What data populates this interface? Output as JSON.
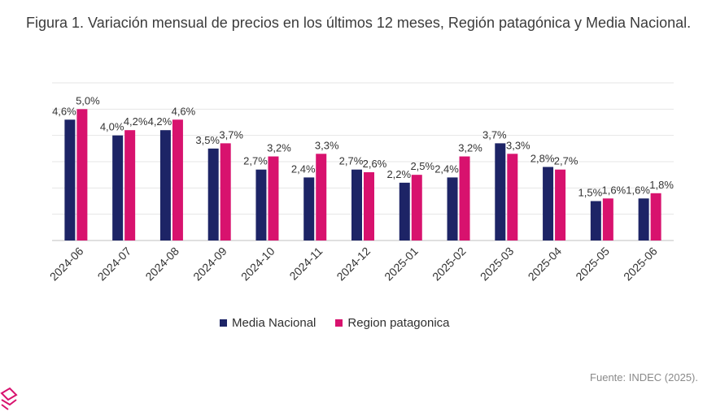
{
  "title": "Figura 1. Variación mensual de precios en los últimos 12 meses, Región patagónica y Media Nacional.",
  "source": "Fuente: INDEC (2025).",
  "colors": {
    "series1": "#1d2466",
    "series2": "#d8126e",
    "grid": "#e6e6e6",
    "axis": "#bfbfbf"
  },
  "chart_data": {
    "type": "bar",
    "categories": [
      "2024-06",
      "2024-07",
      "2024-08",
      "2024-09",
      "2024-10",
      "2024-11",
      "2024-12",
      "2025-01",
      "2025-02",
      "2025-03",
      "2025-04",
      "2025-05",
      "2025-06"
    ],
    "series": [
      {
        "name": "Media Nacional",
        "values": [
          4.6,
          4.0,
          4.2,
          3.5,
          2.7,
          2.4,
          2.7,
          2.2,
          2.4,
          3.7,
          2.8,
          1.5,
          1.6
        ],
        "labels": [
          "4,6%",
          "4,0%",
          "4,2%",
          "3,5%",
          "2,7%",
          "2,4%",
          "2,7%",
          "2,2%",
          "2,4%",
          "3,7%",
          "2,8%",
          "1,5%",
          "1,6%"
        ]
      },
      {
        "name": "Region patagonica",
        "values": [
          5.0,
          4.2,
          4.6,
          3.7,
          3.2,
          3.3,
          2.6,
          2.5,
          3.2,
          3.3,
          2.7,
          1.6,
          1.8
        ],
        "labels": [
          "5,0%",
          "4,2%",
          "4,6%",
          "3,7%",
          "3,2%",
          "3,3%",
          "2,6%",
          "2,5%",
          "3,2%",
          "3,3%",
          "2,7%",
          "1,6%",
          "1,8%"
        ]
      }
    ],
    "ylim": [
      0,
      6
    ],
    "grid": true,
    "legend": "bottom"
  }
}
